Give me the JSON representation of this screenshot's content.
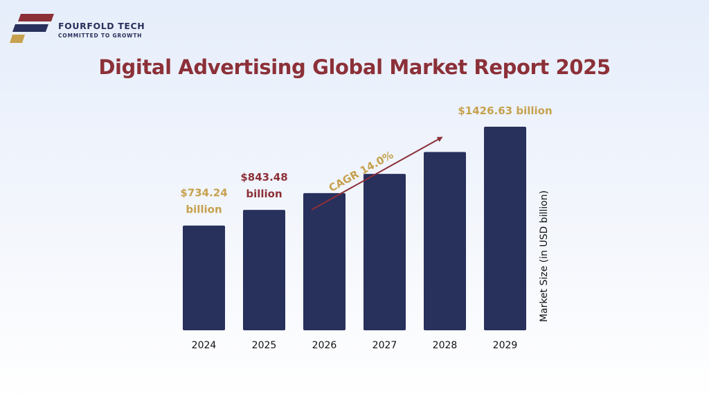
{
  "brand": {
    "name": "FOURFOLD TECH",
    "tagline": "COMMITTED TO GROWTH",
    "logo_colors": [
      "#8c3038",
      "#28305c",
      "#c6a14e"
    ]
  },
  "colors": {
    "bar": "#28305c",
    "accent_maroon": "#8c3038",
    "accent_gold": "#c6a14e",
    "axis_text": "#111111"
  },
  "chart_data": {
    "type": "bar",
    "title": "Digital Advertising Global Market Report 2025",
    "categories": [
      "2024",
      "2025",
      "2026",
      "2027",
      "2028",
      "2029"
    ],
    "values": [
      734.24,
      843.48,
      961.6,
      1096.2,
      1249.7,
      1426.63
    ],
    "ylabel": "Market Size (in USD billion)",
    "xlabel": "",
    "ylim": [
      0,
      1500
    ],
    "grid": false,
    "data_labels": [
      {
        "index": 0,
        "lines": [
          "$734.24",
          "billion"
        ],
        "color": "#c6a14e"
      },
      {
        "index": 1,
        "lines": [
          "$843.48",
          "billion"
        ],
        "color": "#8c3038"
      },
      {
        "index": 5,
        "lines": [
          "$1426.63 billion"
        ],
        "color": "#c6a14e"
      }
    ],
    "annotation": {
      "text": "CAGR 14.0%",
      "color": "#c6a14e",
      "arrow_color": "#8c3038",
      "from_index": 2,
      "to_index": 5
    }
  }
}
